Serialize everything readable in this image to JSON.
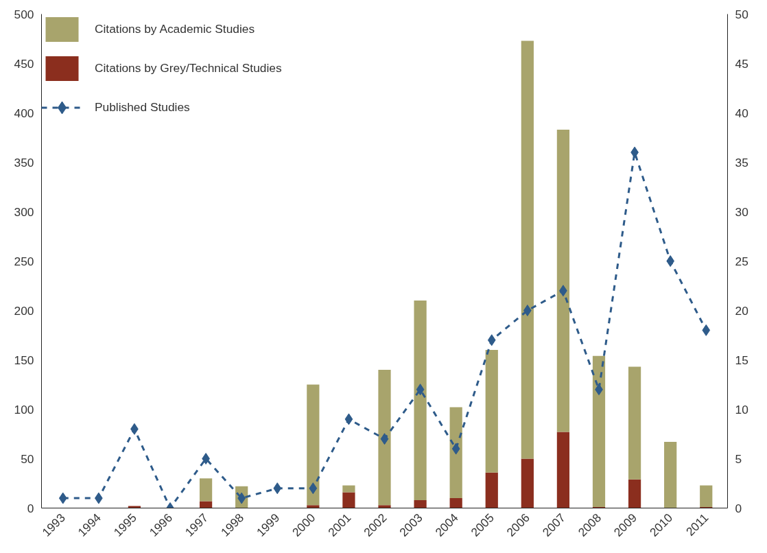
{
  "chart_data": {
    "type": "bar",
    "stacked": true,
    "categories": [
      "1993",
      "1994",
      "1995",
      "1996",
      "1997",
      "1998",
      "1999",
      "2000",
      "2001",
      "2002",
      "2003",
      "2004",
      "2005",
      "2006",
      "2007",
      "2008",
      "2009",
      "2010",
      "2011"
    ],
    "series": [
      {
        "name": "Citations by Grey/Technical Studies",
        "color": "#8b2e1e",
        "values": [
          0,
          0,
          2,
          0,
          7,
          0,
          0,
          3,
          16,
          3,
          8,
          10,
          36,
          50,
          77,
          1,
          29,
          0,
          1
        ]
      },
      {
        "name": "Citations by Academic Studies",
        "color": "#a8a46c",
        "values": [
          0,
          0,
          0,
          0,
          23,
          22,
          0,
          122,
          7,
          137,
          202,
          92,
          124,
          423,
          306,
          153,
          114,
          67,
          22
        ]
      },
      {
        "name": "Published Studies",
        "type": "line",
        "axis": "y2",
        "color": "#2e5b8a",
        "marker": "diamond",
        "line_style": "dashed",
        "values": [
          1,
          1,
          8,
          0,
          5,
          1,
          2,
          2,
          9,
          7,
          12,
          6,
          17,
          20,
          22,
          12,
          36,
          25,
          18
        ]
      }
    ],
    "ylim": [
      0,
      500
    ],
    "yticks": [
      0,
      50,
      100,
      150,
      200,
      250,
      300,
      350,
      400,
      450,
      500
    ],
    "y2lim": [
      0,
      50
    ],
    "y2ticks": [
      0,
      5,
      10,
      15,
      20,
      25,
      30,
      35,
      40,
      45,
      50
    ],
    "grid": false,
    "legend": "top left"
  }
}
